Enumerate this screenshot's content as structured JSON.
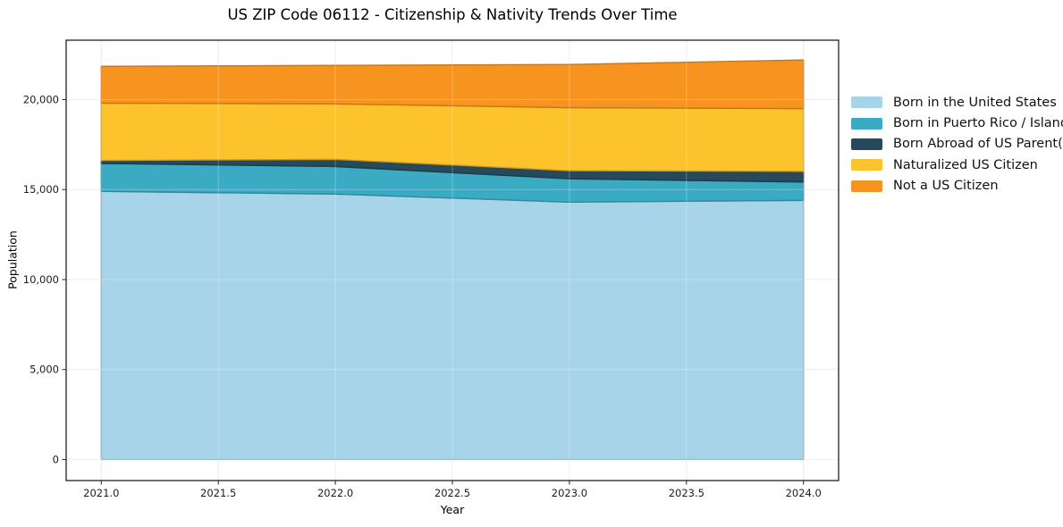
{
  "chart_data": {
    "type": "area",
    "stacked": true,
    "title": "US ZIP Code 06112 - Citizenship & Nativity Trends Over Time",
    "xlabel": "Year",
    "ylabel": "Population",
    "x": [
      2021,
      2022,
      2023,
      2024
    ],
    "series": [
      {
        "name": "Born in the United States",
        "color": "#a7d4e8",
        "values": [
          14900,
          14750,
          14300,
          14400
        ]
      },
      {
        "name": "Born in Puerto Rico / Islands",
        "color": "#3babc3",
        "values": [
          1550,
          1530,
          1300,
          1020
        ]
      },
      {
        "name": "Born Abroad of US Parent(s)",
        "color": "#26495b",
        "values": [
          170,
          400,
          450,
          590
        ]
      },
      {
        "name": "Naturalized US Citizen",
        "color": "#fdc32d",
        "values": [
          3180,
          3080,
          3500,
          3490
        ]
      },
      {
        "name": "Not a US Citizen",
        "color": "#f79420",
        "values": [
          2050,
          2140,
          2400,
          2700
        ]
      }
    ],
    "stack_totals": [
      21850,
      21900,
      21950,
      22200
    ],
    "xlim": [
      2020.85,
      2024.15
    ],
    "ylim": [
      -1170,
      23300
    ],
    "xticks": [
      2021,
      2021.5,
      2022,
      2022.5,
      2023,
      2023.5,
      2024
    ],
    "xtick_labels": [
      "2021.0",
      "2021.5",
      "2022.0",
      "2022.5",
      "2023.0",
      "2023.5",
      "2024.0"
    ],
    "yticks": [
      0,
      5000,
      10000,
      15000,
      20000
    ],
    "ytick_labels": [
      "0",
      "5,000",
      "10,000",
      "15,000",
      "20,000"
    ],
    "grid": true,
    "legend_position": "right",
    "spine_color": "#222222",
    "grid_color": "#e8e8e8",
    "background": "#ffffff"
  }
}
